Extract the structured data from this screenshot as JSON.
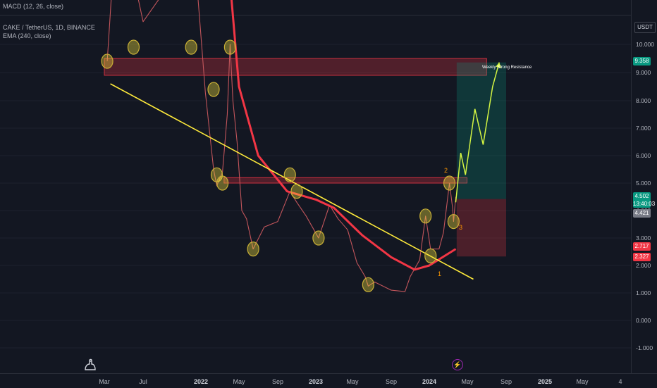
{
  "header": {
    "indicator_top": "MACD (12, 26, close)",
    "symbol": "CAKE / TetherUS, 1D, BINANCE",
    "ema": "EMA (240, close)"
  },
  "currency_unit": "USDT",
  "price_tags": {
    "target": "9.358",
    "last": "4.502",
    "countdown": "13:40:03",
    "stop_ref": "4.421",
    "stop_hi": "2.717",
    "stop_lo": "2.327"
  },
  "annotations": {
    "zone_label": "Weekly Strong Resistance",
    "n1": "1",
    "n2": "2",
    "n3": "3"
  },
  "chart_data": {
    "type": "candlestick",
    "symbol": "CAKE / TetherUS",
    "timeframe": "1D",
    "exchange": "BINANCE",
    "y_scale": "log",
    "y_ticks": [
      "10.000",
      "9.000",
      "8.000",
      "7.000",
      "6.000",
      "5.000",
      "4.000",
      "3.000",
      "2.000",
      "1.000",
      "0.000",
      "-1.000"
    ],
    "x_ticks": [
      "Mar",
      "Jul",
      "2022",
      "May",
      "Sep",
      "2023",
      "May",
      "Sep",
      "2024",
      "May",
      "Sep",
      "2025",
      "May",
      "4"
    ],
    "x_ticks_bold": [
      "2022",
      "2023",
      "2024",
      "2025"
    ],
    "price_path": [
      [
        "2021-03-10",
        9.4
      ],
      [
        "2021-03-25",
        12.5
      ],
      [
        "2021-05-01",
        15.0
      ],
      [
        "2021-07-01",
        11.0
      ],
      [
        "2021-09-15",
        12.5
      ],
      [
        "2021-12-20",
        12.5
      ],
      [
        "2022-01-15",
        8.3
      ],
      [
        "2022-02-10",
        5.5
      ],
      [
        "2022-02-20",
        4.9
      ],
      [
        "2022-03-10",
        5.4
      ],
      [
        "2022-03-25",
        7.5
      ],
      [
        "2022-04-03",
        10.0
      ],
      [
        "2022-04-12",
        8.0
      ],
      [
        "2022-04-25",
        6.5
      ],
      [
        "2022-05-10",
        4.0
      ],
      [
        "2022-05-25",
        3.7
      ],
      [
        "2022-06-15",
        2.6
      ],
      [
        "2022-07-20",
        3.4
      ],
      [
        "2022-09-01",
        3.6
      ],
      [
        "2022-10-10",
        4.7
      ],
      [
        "2022-11-01",
        4.3
      ],
      [
        "2022-12-01",
        3.8
      ],
      [
        "2023-01-10",
        3.0
      ],
      [
        "2023-02-15",
        4.2
      ],
      [
        "2023-03-15",
        3.7
      ],
      [
        "2023-04-15",
        3.3
      ],
      [
        "2023-05-15",
        2.1
      ],
      [
        "2023-06-10",
        1.6
      ],
      [
        "2023-06-20",
        1.25
      ],
      [
        "2023-07-10",
        1.4
      ],
      [
        "2023-09-01",
        1.1
      ],
      [
        "2023-10-15",
        1.05
      ],
      [
        "2023-11-01",
        1.6
      ],
      [
        "2023-12-01",
        2.2
      ],
      [
        "2023-12-20",
        3.8
      ],
      [
        "2024-01-05",
        2.6
      ],
      [
        "2024-02-01",
        2.6
      ],
      [
        "2024-02-15",
        3.2
      ],
      [
        "2024-03-05",
        5.0
      ],
      [
        "2024-03-15",
        4.1
      ],
      [
        "2024-03-18",
        3.6
      ],
      [
        "2024-03-25",
        4.5
      ]
    ],
    "ema_240": [
      [
        "2022-03-20",
        15.0
      ],
      [
        "2022-05-01",
        8.5
      ],
      [
        "2022-07-01",
        6.0
      ],
      [
        "2022-10-01",
        4.7
      ],
      [
        "2023-01-01",
        4.4
      ],
      [
        "2023-03-01",
        4.1
      ],
      [
        "2023-06-01",
        3.1
      ],
      [
        "2023-09-01",
        2.3
      ],
      [
        "2023-11-15",
        1.85
      ],
      [
        "2024-01-01",
        2.0
      ],
      [
        "2024-03-25",
        2.6
      ]
    ],
    "trendline": [
      [
        "2021-03-20",
        8.6
      ],
      [
        "2024-05-20",
        1.5
      ]
    ],
    "resistance_zone_top": {
      "from": "2021-03-01",
      "to": "2024-07-01",
      "low": 8.9,
      "high": 9.5
    },
    "resistance_zone_mid": {
      "from": "2022-03-15",
      "to": "2024-04-30",
      "low": 5.0,
      "high": 5.2
    },
    "projection": [
      [
        "2024-03-25",
        4.3
      ],
      [
        "2024-04-10",
        6.1
      ],
      [
        "2024-04-25",
        5.3
      ],
      [
        "2024-05-25",
        7.7
      ],
      [
        "2024-06-20",
        6.4
      ],
      [
        "2024-07-20",
        8.5
      ],
      [
        "2024-08-10",
        9.36
      ]
    ],
    "position_long": {
      "entry": 4.42,
      "target": 9.358,
      "stop": 2.327,
      "from": "2024-03-28",
      "to": "2024-09-01"
    },
    "circled_points": [
      [
        "2021-03-10",
        9.4
      ],
      [
        "2021-06-01",
        9.9
      ],
      [
        "2021-12-01",
        9.9
      ],
      [
        "2022-02-10",
        8.4
      ],
      [
        "2022-02-20",
        5.3
      ],
      [
        "2022-03-10",
        5.0
      ],
      [
        "2022-04-03",
        9.9
      ],
      [
        "2022-06-15",
        2.6
      ],
      [
        "2022-10-10",
        5.3
      ],
      [
        "2022-11-01",
        4.7
      ],
      [
        "2023-01-10",
        3.0
      ],
      [
        "2023-06-20",
        1.3
      ],
      [
        "2023-12-20",
        3.8
      ],
      [
        "2024-01-05",
        2.35
      ],
      [
        "2024-03-05",
        5.0
      ],
      [
        "2024-03-18",
        3.6
      ]
    ]
  }
}
